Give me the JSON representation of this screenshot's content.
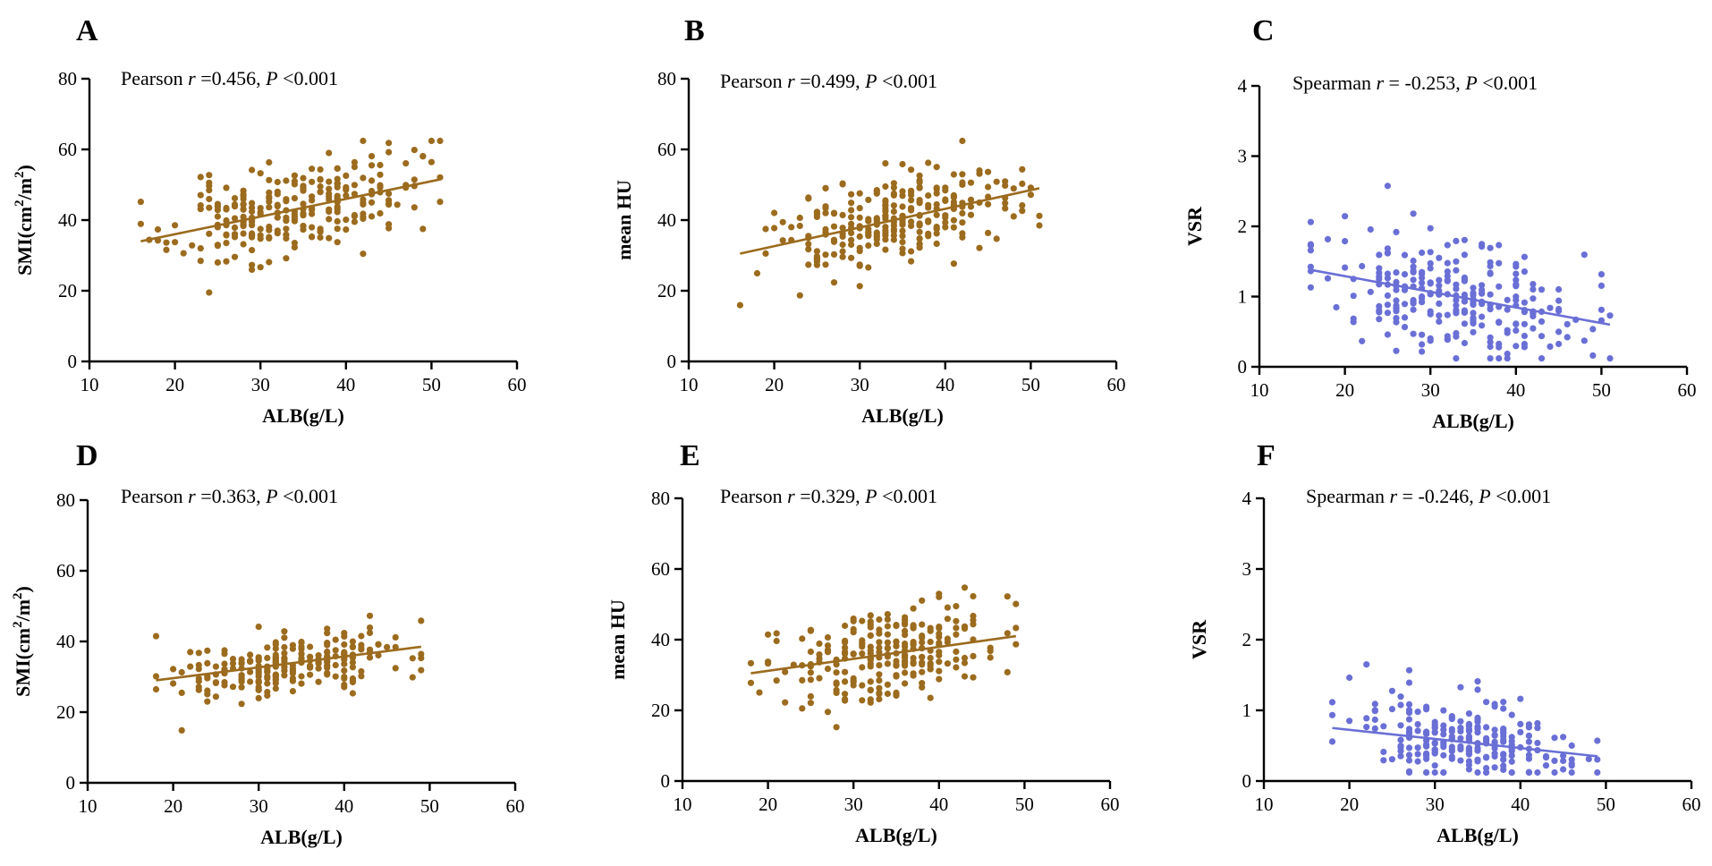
{
  "colors": {
    "brown": "#9B6B1E",
    "blue": "#6A6FD6"
  },
  "chart_data": [
    {
      "id": "A",
      "letter": "A",
      "type": "scatter",
      "color": "brown",
      "stat": {
        "method": "Pearson",
        "r_label": "r",
        "r_text": " =0.456, ",
        "p_label": "P",
        "p_text": " <0.001"
      },
      "xlabel": "ALB(g/L)",
      "ylabel_text": "SMI(cm",
      "ylabel_sup1": "2",
      "ylabel_mid": "/m",
      "ylabel_sup2": "2",
      "ylabel_end": ")",
      "xlim": [
        10,
        60
      ],
      "ylim": [
        0,
        80
      ],
      "xticks": [
        10,
        20,
        30,
        40,
        50,
        60
      ],
      "yticks": [
        0,
        20,
        40,
        60,
        80
      ],
      "regression": {
        "x": [
          16,
          51
        ],
        "y": [
          34,
          51.5
        ]
      },
      "n_points": 260,
      "y_spread": 6.5,
      "x_range": [
        16,
        51
      ],
      "seed": 11
    },
    {
      "id": "B",
      "letter": "B",
      "type": "scatter",
      "color": "brown",
      "stat": {
        "method": "Pearson",
        "r_label": "r",
        "r_text": " =0.499, ",
        "p_label": "P",
        "p_text": " <0.001"
      },
      "xlabel": "ALB(g/L)",
      "ylabel_text": "mean HU",
      "xlim": [
        10,
        60
      ],
      "ylim": [
        0,
        80
      ],
      "xticks": [
        10,
        20,
        30,
        40,
        50,
        60
      ],
      "yticks": [
        0,
        20,
        40,
        60,
        80
      ],
      "regression": {
        "x": [
          16,
          51
        ],
        "y": [
          30.5,
          49
        ]
      },
      "n_points": 260,
      "y_spread": 6.5,
      "x_range": [
        16,
        51
      ],
      "seed": 23
    },
    {
      "id": "C",
      "letter": "C",
      "type": "scatter",
      "color": "blue",
      "stat": {
        "method": "Spearman",
        "r_label": "r",
        "r_text": " = -0.253, ",
        "p_label": "P",
        "p_text": " <0.001"
      },
      "xlabel": "ALB(g/L)",
      "ylabel_text": "VSR",
      "xlim": [
        10,
        60
      ],
      "ylim": [
        0,
        4
      ],
      "xticks": [
        10,
        20,
        30,
        40,
        50,
        60
      ],
      "yticks": [
        0,
        1,
        2,
        3,
        4
      ],
      "regression": {
        "x": [
          16,
          51
        ],
        "y": [
          1.38,
          0.6
        ]
      },
      "n_points": 260,
      "y_spread": 0.45,
      "x_range": [
        16,
        51
      ],
      "seed": 37
    },
    {
      "id": "D",
      "letter": "D",
      "type": "scatter",
      "color": "brown",
      "stat": {
        "method": "Pearson",
        "r_label": "r",
        "r_text": " =0.363, ",
        "p_label": "P",
        "p_text": " <0.001"
      },
      "xlabel": "ALB(g/L)",
      "ylabel_text": "SMI(cm",
      "ylabel_sup1": "2",
      "ylabel_mid": "/m",
      "ylabel_sup2": "2",
      "ylabel_end": ")",
      "xlim": [
        10,
        60
      ],
      "ylim": [
        0,
        80
      ],
      "xticks": [
        10,
        20,
        30,
        40,
        50,
        60
      ],
      "yticks": [
        0,
        20,
        40,
        60,
        80
      ],
      "regression": {
        "x": [
          18,
          49
        ],
        "y": [
          29,
          38.5
        ]
      },
      "n_points": 240,
      "y_spread": 4.5,
      "x_range": [
        18,
        49
      ],
      "seed": 41
    },
    {
      "id": "E",
      "letter": "E",
      "type": "scatter",
      "color": "brown",
      "stat": {
        "method": "Pearson",
        "r_label": "r",
        "r_text": " =0.329, ",
        "p_label": "P",
        "p_text": " <0.001"
      },
      "xlabel": "ALB(g/L)",
      "ylabel_text": "mean HU",
      "xlim": [
        10,
        60
      ],
      "ylim": [
        0,
        80
      ],
      "xticks": [
        10,
        20,
        30,
        40,
        50,
        60
      ],
      "yticks": [
        0,
        20,
        40,
        60,
        80
      ],
      "regression": {
        "x": [
          18,
          49
        ],
        "y": [
          30.5,
          41
        ]
      },
      "n_points": 240,
      "y_spread": 6.5,
      "x_range": [
        18,
        49
      ],
      "seed": 53
    },
    {
      "id": "F",
      "letter": "F",
      "type": "scatter",
      "color": "blue",
      "stat": {
        "method": "Spearman",
        "r_label": "r",
        "r_text": " = -0.246, ",
        "p_label": "P",
        "p_text": " <0.001"
      },
      "xlabel": "ALB(g/L)",
      "ylabel_text": "VSR",
      "xlim": [
        10,
        60
      ],
      "ylim": [
        0,
        4
      ],
      "xticks": [
        10,
        20,
        30,
        40,
        50,
        60
      ],
      "yticks": [
        0,
        1,
        2,
        3,
        4
      ],
      "regression": {
        "x": [
          18,
          49
        ],
        "y": [
          0.75,
          0.35
        ]
      },
      "n_points": 240,
      "y_spread": 0.25,
      "x_range": [
        18,
        49
      ],
      "seed": 67
    }
  ]
}
